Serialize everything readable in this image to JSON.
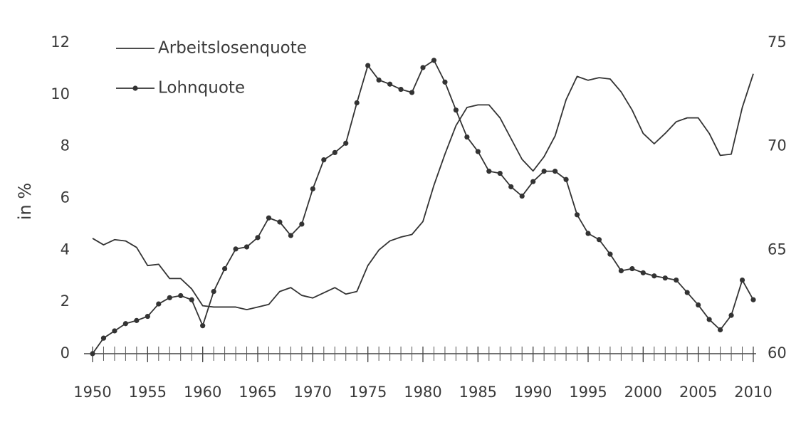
{
  "chart_data": {
    "type": "line",
    "y_label": "in %",
    "x": [
      1950,
      1951,
      1952,
      1953,
      1954,
      1955,
      1956,
      1957,
      1958,
      1959,
      1960,
      1961,
      1962,
      1963,
      1964,
      1965,
      1966,
      1967,
      1968,
      1969,
      1970,
      1971,
      1972,
      1973,
      1974,
      1975,
      1976,
      1977,
      1978,
      1979,
      1980,
      1981,
      1982,
      1983,
      1984,
      1985,
      1986,
      1987,
      1988,
      1989,
      1990,
      1991,
      1992,
      1993,
      1994,
      1995,
      1996,
      1997,
      1998,
      1999,
      2000,
      2001,
      2002,
      2003,
      2004,
      2005,
      2006,
      2007,
      2008,
      2009,
      2010
    ],
    "series": [
      {
        "name": "Arbeitslosenquote",
        "color": "#333333",
        "marker": false,
        "values": [
          4.45,
          4.2,
          4.4,
          4.35,
          4.1,
          3.4,
          3.45,
          2.9,
          2.9,
          2.5,
          1.85,
          1.8,
          1.8,
          1.8,
          1.7,
          1.8,
          1.9,
          2.4,
          2.55,
          2.25,
          2.15,
          2.35,
          2.55,
          2.3,
          2.4,
          3.4,
          4.0,
          4.35,
          4.5,
          4.6,
          5.1,
          6.5,
          7.7,
          8.8,
          9.5,
          9.6,
          9.6,
          9.1,
          8.3,
          7.5,
          7.05,
          7.6,
          8.4,
          9.8,
          10.7,
          10.55,
          10.65,
          10.6,
          10.1,
          9.4,
          8.5,
          8.1,
          8.5,
          8.95,
          9.1,
          9.1,
          8.5,
          7.65,
          7.7,
          9.5,
          10.8
        ]
      },
      {
        "name": "Lohnquote",
        "color": "#333333",
        "marker": true,
        "axis": "y2",
        "values": [
          60.0,
          60.75,
          61.1,
          61.45,
          61.6,
          61.8,
          62.4,
          62.7,
          62.8,
          62.6,
          61.35,
          63.0,
          64.1,
          65.05,
          65.15,
          65.6,
          66.55,
          66.35,
          65.7,
          66.25,
          67.95,
          69.35,
          69.7,
          70.15,
          72.1,
          73.9,
          73.2,
          73.0,
          72.75,
          72.6,
          73.8,
          74.15,
          73.1,
          71.75,
          70.45,
          69.75,
          68.8,
          68.7,
          68.05,
          67.6,
          68.3,
          68.8,
          68.8,
          68.4,
          66.7,
          65.8,
          65.5,
          64.8,
          64.0,
          64.1,
          63.9,
          63.75,
          63.65,
          63.55,
          62.95,
          62.35,
          61.65,
          61.15,
          61.85,
          63.55,
          62.6
        ]
      }
    ],
    "xlim": [
      1950,
      2010
    ],
    "xticks": [
      1950,
      1955,
      1960,
      1965,
      1970,
      1975,
      1980,
      1985,
      1990,
      1995,
      2000,
      2005,
      2010
    ],
    "ylim": [
      0,
      12
    ],
    "yticks": [
      0,
      2,
      4,
      6,
      8,
      10,
      12
    ],
    "y2lim": [
      60,
      75
    ],
    "y2ticks": [
      60,
      65,
      70,
      75
    ],
    "legend": "top-left",
    "grid": false
  }
}
